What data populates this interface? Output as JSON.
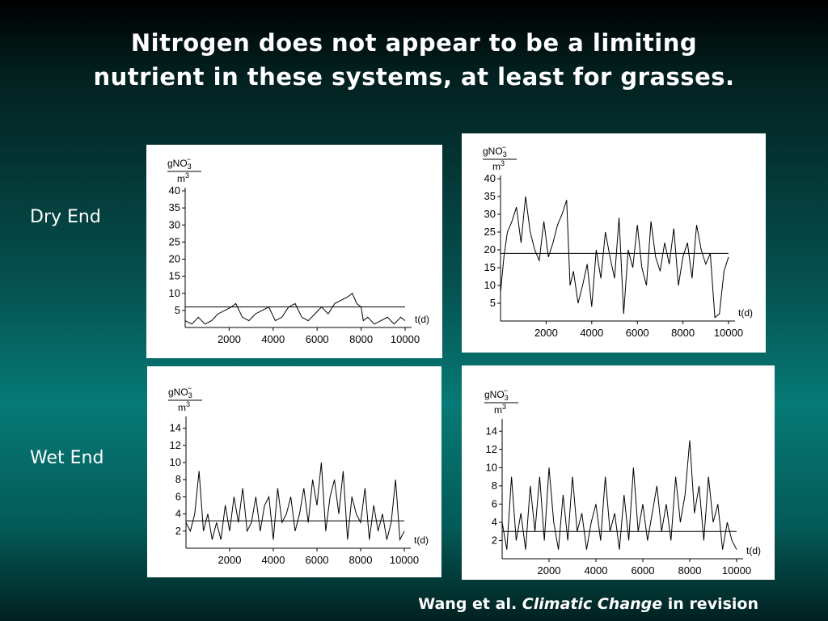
{
  "slide": {
    "title_line1": "Nitrogen does not appear to be a limiting",
    "title_line2": "nutrient in these systems, at least for grasses.",
    "row_labels": {
      "dry": "Dry End",
      "wet": "Wet End"
    },
    "citation": {
      "authors": "Wang et al. ",
      "journal": "Climatic Change",
      "status": " in revision"
    }
  },
  "chart_data": [
    {
      "id": "dry-left",
      "type": "line",
      "ylabel_num": "gNO",
      "ylabel_sub": "3",
      "ylabel_sup": "−",
      "ylabel_den": "m",
      "ylabel_den_sup": "3",
      "xlabel": "t(d)",
      "xlim": [
        0,
        10000
      ],
      "ylim": [
        0,
        40
      ],
      "x_ticks": [
        2000,
        4000,
        6000,
        8000,
        10000
      ],
      "y_ticks": [
        5,
        10,
        15,
        20,
        25,
        30,
        35,
        40
      ],
      "reference_line": 6,
      "series": [
        {
          "x": [
            0,
            300,
            600,
            900,
            1200,
            1500,
            1800,
            2100,
            2300,
            2600,
            2900,
            3200,
            3500,
            3800,
            4100,
            4400,
            4700,
            5000,
            5300,
            5600,
            5900,
            6200,
            6500,
            6800,
            7100,
            7400,
            7600,
            7800,
            8000,
            8100,
            8300,
            8600,
            8900,
            9200,
            9500,
            9800,
            10000
          ],
          "y": [
            2,
            1,
            3,
            1,
            2,
            4,
            5,
            6,
            7,
            3,
            2,
            4,
            5,
            6,
            2,
            3,
            6,
            7,
            3,
            2,
            4,
            6,
            4,
            7,
            8,
            9,
            10,
            7,
            6,
            2,
            3,
            1,
            2,
            3,
            1,
            3,
            2
          ]
        }
      ]
    },
    {
      "id": "dry-right",
      "type": "line",
      "ylabel_num": "gNO",
      "ylabel_sub": "3",
      "ylabel_sup": "−",
      "ylabel_den": "m",
      "ylabel_den_sup": "3",
      "xlabel": "t(d)",
      "xlim": [
        0,
        10000
      ],
      "ylim": [
        0,
        40
      ],
      "x_ticks": [
        2000,
        4000,
        6000,
        8000,
        10000
      ],
      "y_ticks": [
        5,
        10,
        15,
        20,
        25,
        30,
        35,
        40
      ],
      "reference_line": 19,
      "series": [
        {
          "x": [
            0,
            150,
            300,
            500,
            700,
            900,
            1100,
            1300,
            1500,
            1700,
            1900,
            2100,
            2300,
            2500,
            2700,
            2900,
            3050,
            3200,
            3400,
            3600,
            3800,
            4000,
            4200,
            4400,
            4600,
            4800,
            5000,
            5200,
            5400,
            5600,
            5800,
            6000,
            6200,
            6400,
            6600,
            6800,
            7000,
            7200,
            7400,
            7600,
            7800,
            8000,
            8200,
            8400,
            8600,
            8800,
            9000,
            9200,
            9400,
            9600,
            9800,
            10000
          ],
          "y": [
            8,
            18,
            25,
            28,
            32,
            22,
            35,
            25,
            20,
            17,
            28,
            18,
            22,
            27,
            30,
            34,
            10,
            14,
            5,
            10,
            16,
            4,
            20,
            12,
            25,
            18,
            12,
            29,
            2,
            20,
            15,
            27,
            15,
            10,
            28,
            18,
            14,
            22,
            16,
            26,
            10,
            18,
            22,
            12,
            27,
            20,
            16,
            19,
            1,
            2,
            14,
            18
          ]
        }
      ]
    },
    {
      "id": "wet-left",
      "type": "line",
      "ylabel_num": "gNO",
      "ylabel_sub": "3",
      "ylabel_sup": "−",
      "ylabel_den": "m",
      "ylabel_den_sup": "3",
      "xlabel": "t(d)",
      "xlim": [
        0,
        10000
      ],
      "ylim": [
        0,
        15
      ],
      "x_ticks": [
        2000,
        4000,
        6000,
        8000,
        10000
      ],
      "y_ticks": [
        2,
        4,
        6,
        8,
        10,
        12,
        14
      ],
      "reference_line": 3.2,
      "series": [
        {
          "x": [
            0,
            200,
            400,
            600,
            800,
            1000,
            1200,
            1400,
            1600,
            1800,
            2000,
            2200,
            2400,
            2600,
            2800,
            3000,
            3200,
            3400,
            3600,
            3800,
            4000,
            4200,
            4400,
            4600,
            4800,
            5000,
            5200,
            5400,
            5600,
            5800,
            6000,
            6200,
            6400,
            6600,
            6800,
            7000,
            7200,
            7400,
            7600,
            7800,
            8000,
            8200,
            8400,
            8600,
            8800,
            9000,
            9200,
            9400,
            9600,
            9800,
            10000
          ],
          "y": [
            3,
            2,
            4,
            9,
            2,
            4,
            1,
            3,
            1,
            5,
            2,
            6,
            3,
            7,
            2,
            3,
            6,
            2,
            5,
            6,
            1,
            7,
            3,
            4,
            6,
            2,
            4,
            7,
            3,
            8,
            5,
            10,
            2,
            6,
            8,
            4,
            9,
            1,
            6,
            4,
            3,
            7,
            1,
            5,
            2,
            4,
            1,
            3,
            8,
            1,
            2
          ]
        }
      ]
    },
    {
      "id": "wet-right",
      "type": "line",
      "ylabel_num": "gNO",
      "ylabel_sub": "3",
      "ylabel_sup": "−",
      "ylabel_den": "m",
      "ylabel_den_sup": "3",
      "xlabel": "t(d)",
      "xlim": [
        0,
        10000
      ],
      "ylim": [
        0,
        15
      ],
      "x_ticks": [
        2000,
        4000,
        6000,
        8000,
        10000
      ],
      "y_ticks": [
        2,
        4,
        6,
        8,
        10,
        12,
        14
      ],
      "reference_line": 3,
      "series": [
        {
          "x": [
            0,
            200,
            400,
            600,
            800,
            1000,
            1200,
            1400,
            1600,
            1800,
            2000,
            2200,
            2400,
            2600,
            2800,
            3000,
            3200,
            3400,
            3600,
            3800,
            4000,
            4200,
            4400,
            4600,
            4800,
            5000,
            5200,
            5400,
            5600,
            5800,
            6000,
            6200,
            6400,
            6600,
            6800,
            7000,
            7200,
            7400,
            7600,
            7800,
            8000,
            8200,
            8400,
            8600,
            8800,
            9000,
            9200,
            9400,
            9600,
            9800,
            10000
          ],
          "y": [
            4,
            1,
            9,
            2,
            5,
            1,
            8,
            3,
            9,
            2,
            10,
            4,
            1,
            7,
            2,
            9,
            3,
            5,
            1,
            4,
            6,
            2,
            9,
            3,
            5,
            1,
            7,
            2,
            10,
            3,
            6,
            2,
            5,
            8,
            3,
            6,
            2,
            9,
            4,
            7,
            13,
            5,
            8,
            2,
            9,
            4,
            6,
            1,
            4,
            2,
            1
          ]
        }
      ]
    }
  ]
}
